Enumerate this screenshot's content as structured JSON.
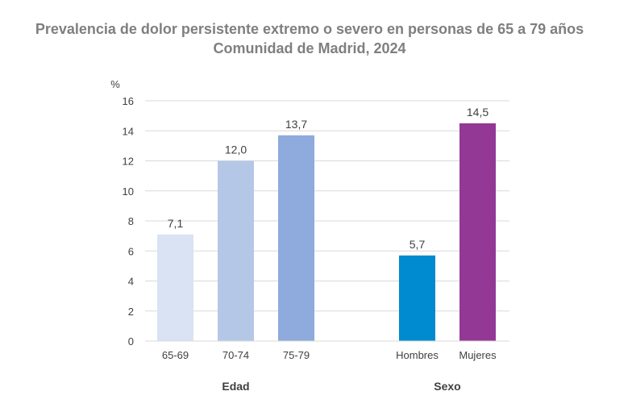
{
  "chart_data": {
    "type": "bar",
    "title": "Prevalencia de dolor persistente extremo o severo en personas de 65 a 79 años",
    "subtitle": "Comunidad de Madrid, 2024",
    "ylabel": "%",
    "ylim": [
      0,
      16
    ],
    "yticks": [
      "0",
      "2",
      "4",
      "6",
      "8",
      "10",
      "12",
      "14",
      "16"
    ],
    "grid": true,
    "categories": [
      "65-69",
      "70-74",
      "75-79",
      "Hombres",
      "Mujeres"
    ],
    "values": [
      7.1,
      12.0,
      13.7,
      5.7,
      14.5
    ],
    "value_labels": [
      "7,1",
      "12,0",
      "13,7",
      "5,7",
      "14,5"
    ],
    "colors": [
      "#dae3f3",
      "#b4c7e7",
      "#8faadc",
      "#008ad0",
      "#933895"
    ],
    "groups": [
      {
        "label": "Edad",
        "categories": [
          "65-69",
          "70-74",
          "75-79"
        ]
      },
      {
        "label": "Sexo",
        "categories": [
          "Hombres",
          "Mujeres"
        ]
      }
    ]
  }
}
